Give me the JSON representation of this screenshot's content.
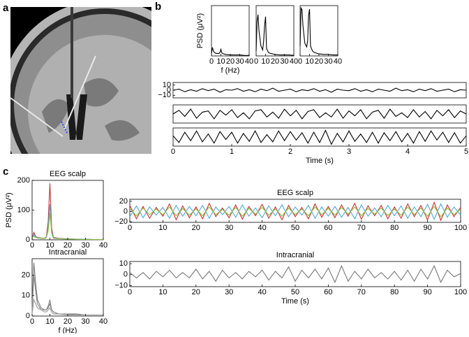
{
  "panel_labels": [
    "a",
    "b",
    "c"
  ],
  "chart_data": [
    {
      "type": "line",
      "xlabel": "f (Hz)",
      "ylabel": "PSD (μV²)",
      "xlim": [
        0,
        40
      ],
      "xticks": [
        0,
        10,
        20,
        30,
        40
      ],
      "ylim": [
        0,
        1
      ],
      "color": "#000000",
      "x": [
        0,
        1,
        2,
        3,
        5,
        7,
        8,
        9,
        10,
        11,
        13,
        15,
        20,
        25,
        30,
        35,
        40
      ],
      "values": [
        0.05,
        0.17,
        0.1,
        0.07,
        0.05,
        0.05,
        0.05,
        0.07,
        0.13,
        0.06,
        0.04,
        0.03,
        0.02,
        0.02,
        0.02,
        0.01,
        0.01
      ]
    },
    {
      "type": "line",
      "xlim": [
        0,
        40
      ],
      "xticks": [
        0,
        10,
        20,
        30,
        40
      ],
      "ylim": [
        0,
        1
      ],
      "color": "#000000",
      "x": [
        0,
        1,
        2,
        3,
        5,
        7,
        8,
        9,
        10,
        11,
        13,
        15,
        20,
        25,
        30,
        35,
        40
      ],
      "values": [
        0.1,
        0.7,
        0.82,
        0.5,
        0.2,
        0.12,
        0.3,
        0.6,
        0.78,
        0.15,
        0.07,
        0.05,
        0.03,
        0.02,
        0.02,
        0.02,
        0.01
      ]
    },
    {
      "type": "line",
      "xlim": [
        0,
        40
      ],
      "xticks": [
        0,
        10,
        20,
        30,
        40
      ],
      "ylim": [
        0,
        1
      ],
      "color": "#000000",
      "x": [
        0,
        1,
        2,
        3,
        5,
        7,
        8,
        9,
        10,
        11,
        13,
        15,
        20,
        25,
        30,
        35,
        40
      ],
      "values": [
        0.2,
        0.95,
        0.92,
        0.6,
        0.25,
        0.18,
        0.3,
        0.8,
        0.93,
        0.2,
        0.1,
        0.07,
        0.04,
        0.03,
        0.03,
        0.02,
        0.02
      ]
    },
    {
      "type": "line",
      "xlim": [
        0,
        5
      ],
      "ylim": [
        -15,
        15
      ],
      "yticks": [
        10,
        0,
        {
          "value": -10,
          "label": "−10"
        }
      ],
      "color": "#000000",
      "x": [
        0,
        0.1,
        0.2,
        0.3,
        0.4,
        0.5,
        0.6,
        0.7,
        0.8,
        0.9,
        1,
        1.1,
        1.2,
        1.3,
        1.4,
        1.5,
        1.6,
        1.7,
        1.8,
        1.9,
        2,
        2.1,
        2.2,
        2.3,
        2.4,
        2.5,
        2.6,
        2.7,
        2.8,
        2.9,
        3,
        3.1,
        3.2,
        3.3,
        3.4,
        3.5,
        3.6,
        3.7,
        3.8,
        3.9,
        4,
        4.1,
        4.2,
        4.3,
        4.4,
        4.5,
        4.6,
        4.7,
        4.8,
        4.9,
        5
      ],
      "values": [
        0,
        2,
        -3,
        1,
        -2,
        3,
        -1,
        2,
        -4,
        1,
        0,
        3,
        -2,
        1,
        -3,
        2,
        -1,
        4,
        -2,
        0,
        2,
        -3,
        1,
        -1,
        3,
        -2,
        1,
        -4,
        2,
        0,
        -1,
        3,
        -2,
        1,
        -3,
        2,
        0,
        -2,
        4,
        -1,
        1,
        -3,
        2,
        -1,
        3,
        -2,
        0,
        2,
        -3,
        1,
        0
      ]
    },
    {
      "type": "line",
      "xlim": [
        0,
        5
      ],
      "ylim": [
        -15,
        15
      ],
      "color": "#000000",
      "x": [
        0,
        0.1,
        0.2,
        0.3,
        0.4,
        0.5,
        0.6,
        0.7,
        0.8,
        0.9,
        1,
        1.1,
        1.2,
        1.3,
        1.4,
        1.5,
        1.6,
        1.7,
        1.8,
        1.9,
        2,
        2.1,
        2.2,
        2.3,
        2.4,
        2.5,
        2.6,
        2.7,
        2.8,
        2.9,
        3,
        3.1,
        3.2,
        3.3,
        3.4,
        3.5,
        3.6,
        3.7,
        3.8,
        3.9,
        4,
        4.1,
        4.2,
        4.3,
        4.4,
        4.5,
        4.6,
        4.7,
        4.8,
        4.9,
        5
      ],
      "values": [
        0,
        6,
        -4,
        8,
        -7,
        3,
        5,
        -8,
        6,
        -2,
        7,
        -6,
        2,
        -8,
        5,
        7,
        -5,
        3,
        -7,
        8,
        -3,
        6,
        -8,
        4,
        7,
        -6,
        2,
        -5,
        8,
        -7,
        5,
        -3,
        7,
        -8,
        3,
        6,
        -7,
        8,
        -4,
        2,
        -6,
        7,
        -5,
        4,
        -8,
        6,
        -3,
        7,
        -6,
        5,
        0
      ]
    },
    {
      "type": "line",
      "xlabel": "Time (s)",
      "xlim": [
        0,
        5
      ],
      "xticks": [
        0,
        1,
        2,
        3,
        4,
        5
      ],
      "ylim": [
        -15,
        15
      ],
      "color": "#000000",
      "x": [
        0,
        0.1,
        0.2,
        0.3,
        0.4,
        0.5,
        0.6,
        0.7,
        0.8,
        0.9,
        1,
        1.1,
        1.2,
        1.3,
        1.4,
        1.5,
        1.6,
        1.7,
        1.8,
        1.9,
        2,
        2.1,
        2.2,
        2.3,
        2.4,
        2.5,
        2.6,
        2.7,
        2.8,
        2.9,
        3,
        3.1,
        3.2,
        3.3,
        3.4,
        3.5,
        3.6,
        3.7,
        3.8,
        3.9,
        4,
        4.1,
        4.2,
        4.3,
        4.4,
        4.5,
        4.6,
        4.7,
        4.8,
        4.9,
        5
      ],
      "values": [
        2,
        -9,
        8,
        -6,
        10,
        -8,
        5,
        -10,
        9,
        -4,
        8,
        -10,
        6,
        -7,
        10,
        -9,
        4,
        -8,
        10,
        -6,
        9,
        -5,
        7,
        -10,
        8,
        -9,
        11,
        -12,
        6,
        -8,
        10,
        -7,
        5,
        -9,
        8,
        -10,
        7,
        -6,
        9,
        -8,
        6,
        -10,
        9,
        -7,
        10,
        -5,
        8,
        -9,
        7,
        -10,
        2
      ]
    },
    {
      "type": "line",
      "title": "EEG scalp",
      "ylabel": "PSD (μV²)",
      "xlim": [
        0,
        40
      ],
      "xticks": [
        0,
        10,
        20,
        30,
        40
      ],
      "ylim": [
        0,
        200
      ],
      "yticks": [
        0,
        100,
        200
      ],
      "x": [
        0,
        1,
        2,
        3,
        5,
        7,
        8,
        9,
        10,
        11,
        12,
        15,
        20,
        25,
        30,
        35,
        40
      ],
      "series": [
        {
          "color": "#c83232",
          "values": [
            5,
            25,
            12,
            8,
            6,
            5,
            10,
            60,
            190,
            40,
            8,
            5,
            3,
            2,
            2,
            1,
            1
          ]
        },
        {
          "color": "#4fa8d8",
          "values": [
            5,
            18,
            10,
            7,
            5,
            5,
            8,
            40,
            120,
            30,
            6,
            4,
            3,
            2,
            2,
            1,
            1
          ]
        },
        {
          "color": "#8cbf3f",
          "values": [
            4,
            12,
            8,
            6,
            5,
            4,
            7,
            30,
            90,
            22,
            5,
            4,
            2,
            2,
            1,
            1,
            1
          ]
        }
      ]
    },
    {
      "type": "line",
      "title": "EEG scalp",
      "xlim": [
        0,
        100
      ],
      "xticks": [
        0,
        10,
        20,
        30,
        40,
        50,
        60,
        70,
        80,
        90,
        100
      ],
      "ylim": [
        -21,
        24
      ],
      "yticks": [
        20,
        0,
        {
          "value": -20,
          "label": "−20"
        }
      ],
      "x": [
        0,
        2,
        4,
        6,
        8,
        10,
        12,
        14,
        16,
        18,
        20,
        22,
        24,
        26,
        28,
        30,
        32,
        34,
        36,
        38,
        40,
        42,
        44,
        46,
        48,
        50,
        52,
        54,
        56,
        58,
        60,
        62,
        64,
        66,
        68,
        70,
        72,
        74,
        76,
        78,
        80,
        82,
        84,
        86,
        88,
        90,
        92,
        94,
        96,
        98,
        100
      ],
      "series": [
        {
          "color": "#c83232",
          "values": [
            12,
            -14,
            10,
            -13,
            8,
            -9,
            15,
            -16,
            11,
            -12,
            9,
            -14,
            16,
            -10,
            7,
            -12,
            13,
            -15,
            10,
            -8,
            14,
            -13,
            9,
            -16,
            12,
            -10,
            8,
            -14,
            15,
            -11,
            10,
            -12,
            13,
            -9,
            16,
            -15,
            11,
            -8,
            12,
            -14,
            9,
            -13,
            15,
            -10,
            12,
            -16,
            18,
            -17,
            13,
            -10,
            8
          ]
        },
        {
          "color": "#4fa8d8",
          "values": [
            -10,
            11,
            -12,
            9,
            -7,
            8,
            -13,
            12,
            -9,
            10,
            -8,
            12,
            -13,
            9,
            -6,
            10,
            -11,
            13,
            -9,
            7,
            -12,
            11,
            -8,
            13,
            -10,
            9,
            -7,
            12,
            -13,
            9,
            -9,
            10,
            -11,
            8,
            -14,
            13,
            -9,
            7,
            -10,
            12,
            -8,
            11,
            -13,
            9,
            -10,
            14,
            -15,
            15,
            -11,
            9,
            -7
          ]
        },
        {
          "color": "#8cbf3f",
          "values": [
            6,
            -8,
            7,
            -6,
            5,
            -6,
            9,
            -8,
            6,
            -7,
            5,
            -8,
            9,
            -6,
            4,
            -7,
            8,
            -9,
            6,
            -5,
            8,
            -7,
            5,
            -9,
            7,
            -6,
            5,
            -8,
            9,
            -6,
            6,
            -7,
            8,
            -5,
            9,
            -8,
            6,
            -5,
            7,
            -8,
            5,
            -7,
            9,
            -6,
            7,
            -9,
            10,
            -10,
            7,
            -6,
            5
          ]
        }
      ]
    },
    {
      "type": "line",
      "title": "Intracranial",
      "xlabel": "f (Hz)",
      "xlim": [
        0,
        40
      ],
      "xticks": [
        0,
        10,
        20,
        30,
        40
      ],
      "ylim": [
        0,
        28
      ],
      "yticks": [
        0,
        10,
        20
      ],
      "x": [
        0,
        1,
        2,
        3,
        5,
        7,
        8,
        9,
        10,
        11,
        12,
        15,
        20,
        25,
        30,
        35,
        40
      ],
      "series": [
        {
          "color": "#777777",
          "values": [
            3,
            26,
            16,
            8,
            4,
            3,
            3,
            4,
            6,
            3,
            2,
            1,
            1,
            1,
            0.5,
            0.5,
            0.5
          ]
        },
        {
          "color": "#888888",
          "values": [
            2,
            20,
            12,
            6,
            3,
            3,
            3,
            5,
            8,
            3,
            2,
            1,
            1,
            0.5,
            0.5,
            0.5,
            0.5
          ]
        },
        {
          "color": "#999999",
          "values": [
            1,
            8,
            6,
            4,
            3,
            2,
            2,
            3,
            4,
            2,
            1,
            1,
            0.5,
            0.5,
            0.5,
            0.5,
            0.5
          ]
        }
      ]
    },
    {
      "type": "line",
      "title": "Intracranial",
      "xlabel": "Time (s)",
      "xlim": [
        0,
        100
      ],
      "xticks": [
        0,
        10,
        20,
        30,
        40,
        50,
        60,
        70,
        80,
        90,
        100
      ],
      "ylim": [
        -11,
        12
      ],
      "yticks": [
        10,
        0,
        {
          "value": -10,
          "label": "−10"
        }
      ],
      "color": "#777777",
      "x": [
        0,
        2,
        4,
        6,
        8,
        10,
        12,
        14,
        16,
        18,
        20,
        22,
        24,
        26,
        28,
        30,
        32,
        34,
        36,
        38,
        40,
        42,
        44,
        46,
        48,
        50,
        52,
        54,
        56,
        58,
        60,
        62,
        64,
        66,
        68,
        70,
        72,
        74,
        76,
        78,
        80,
        82,
        84,
        86,
        88,
        90,
        92,
        94,
        96,
        98,
        100
      ],
      "values": [
        2,
        -3,
        2,
        -4,
        3,
        -2,
        4,
        -3,
        2,
        -3,
        5,
        -4,
        3,
        -6,
        4,
        -3,
        2,
        -4,
        3,
        -2,
        4,
        -5,
        3,
        -3,
        7,
        -6,
        4,
        -3,
        5,
        -4,
        6,
        -7,
        8,
        -6,
        3,
        -4,
        5,
        -3,
        2,
        -4,
        3,
        -5,
        4,
        -6,
        5,
        -4,
        8,
        -7,
        4,
        -2,
        1
      ]
    }
  ]
}
